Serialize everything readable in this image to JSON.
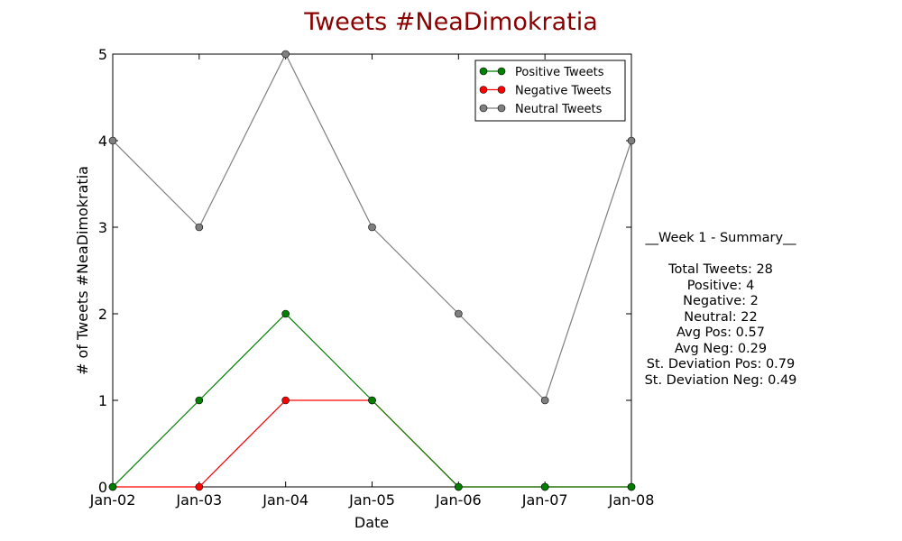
{
  "chart_data": {
    "type": "line",
    "title": "Tweets #NeaDimokratia",
    "title_color": "#8b0000",
    "xlabel": "Date",
    "ylabel": "# of Tweets #NeaDimokratia",
    "categories": [
      "Jan-02",
      "Jan-03",
      "Jan-04",
      "Jan-05",
      "Jan-06",
      "Jan-07",
      "Jan-08"
    ],
    "ylim": [
      0,
      5
    ],
    "yticks": [
      "0",
      "1",
      "2",
      "3",
      "4",
      "5"
    ],
    "legend_position": "top-right",
    "grid": false,
    "series": [
      {
        "name": "Positive Tweets",
        "color": "#007f00",
        "values": [
          0,
          1,
          2,
          1,
          0,
          0,
          0
        ]
      },
      {
        "name": "Negative Tweets",
        "color": "#ff0000",
        "values": [
          0,
          0,
          1,
          1,
          0,
          0,
          0
        ]
      },
      {
        "name": "Neutral Tweets",
        "color": "#7f7f7f",
        "values": [
          4,
          3,
          5,
          3,
          2,
          1,
          4
        ]
      }
    ]
  },
  "summary": {
    "heading": "__Week 1 - Summary__",
    "lines": [
      "Total Tweets: 28",
      "Positive: 4",
      "Negative: 2",
      "Neutral: 22",
      "Avg Pos: 0.57",
      "Avg Neg: 0.29",
      "St. Deviation Pos: 0.79",
      "St. Deviation Neg: 0.49"
    ]
  }
}
